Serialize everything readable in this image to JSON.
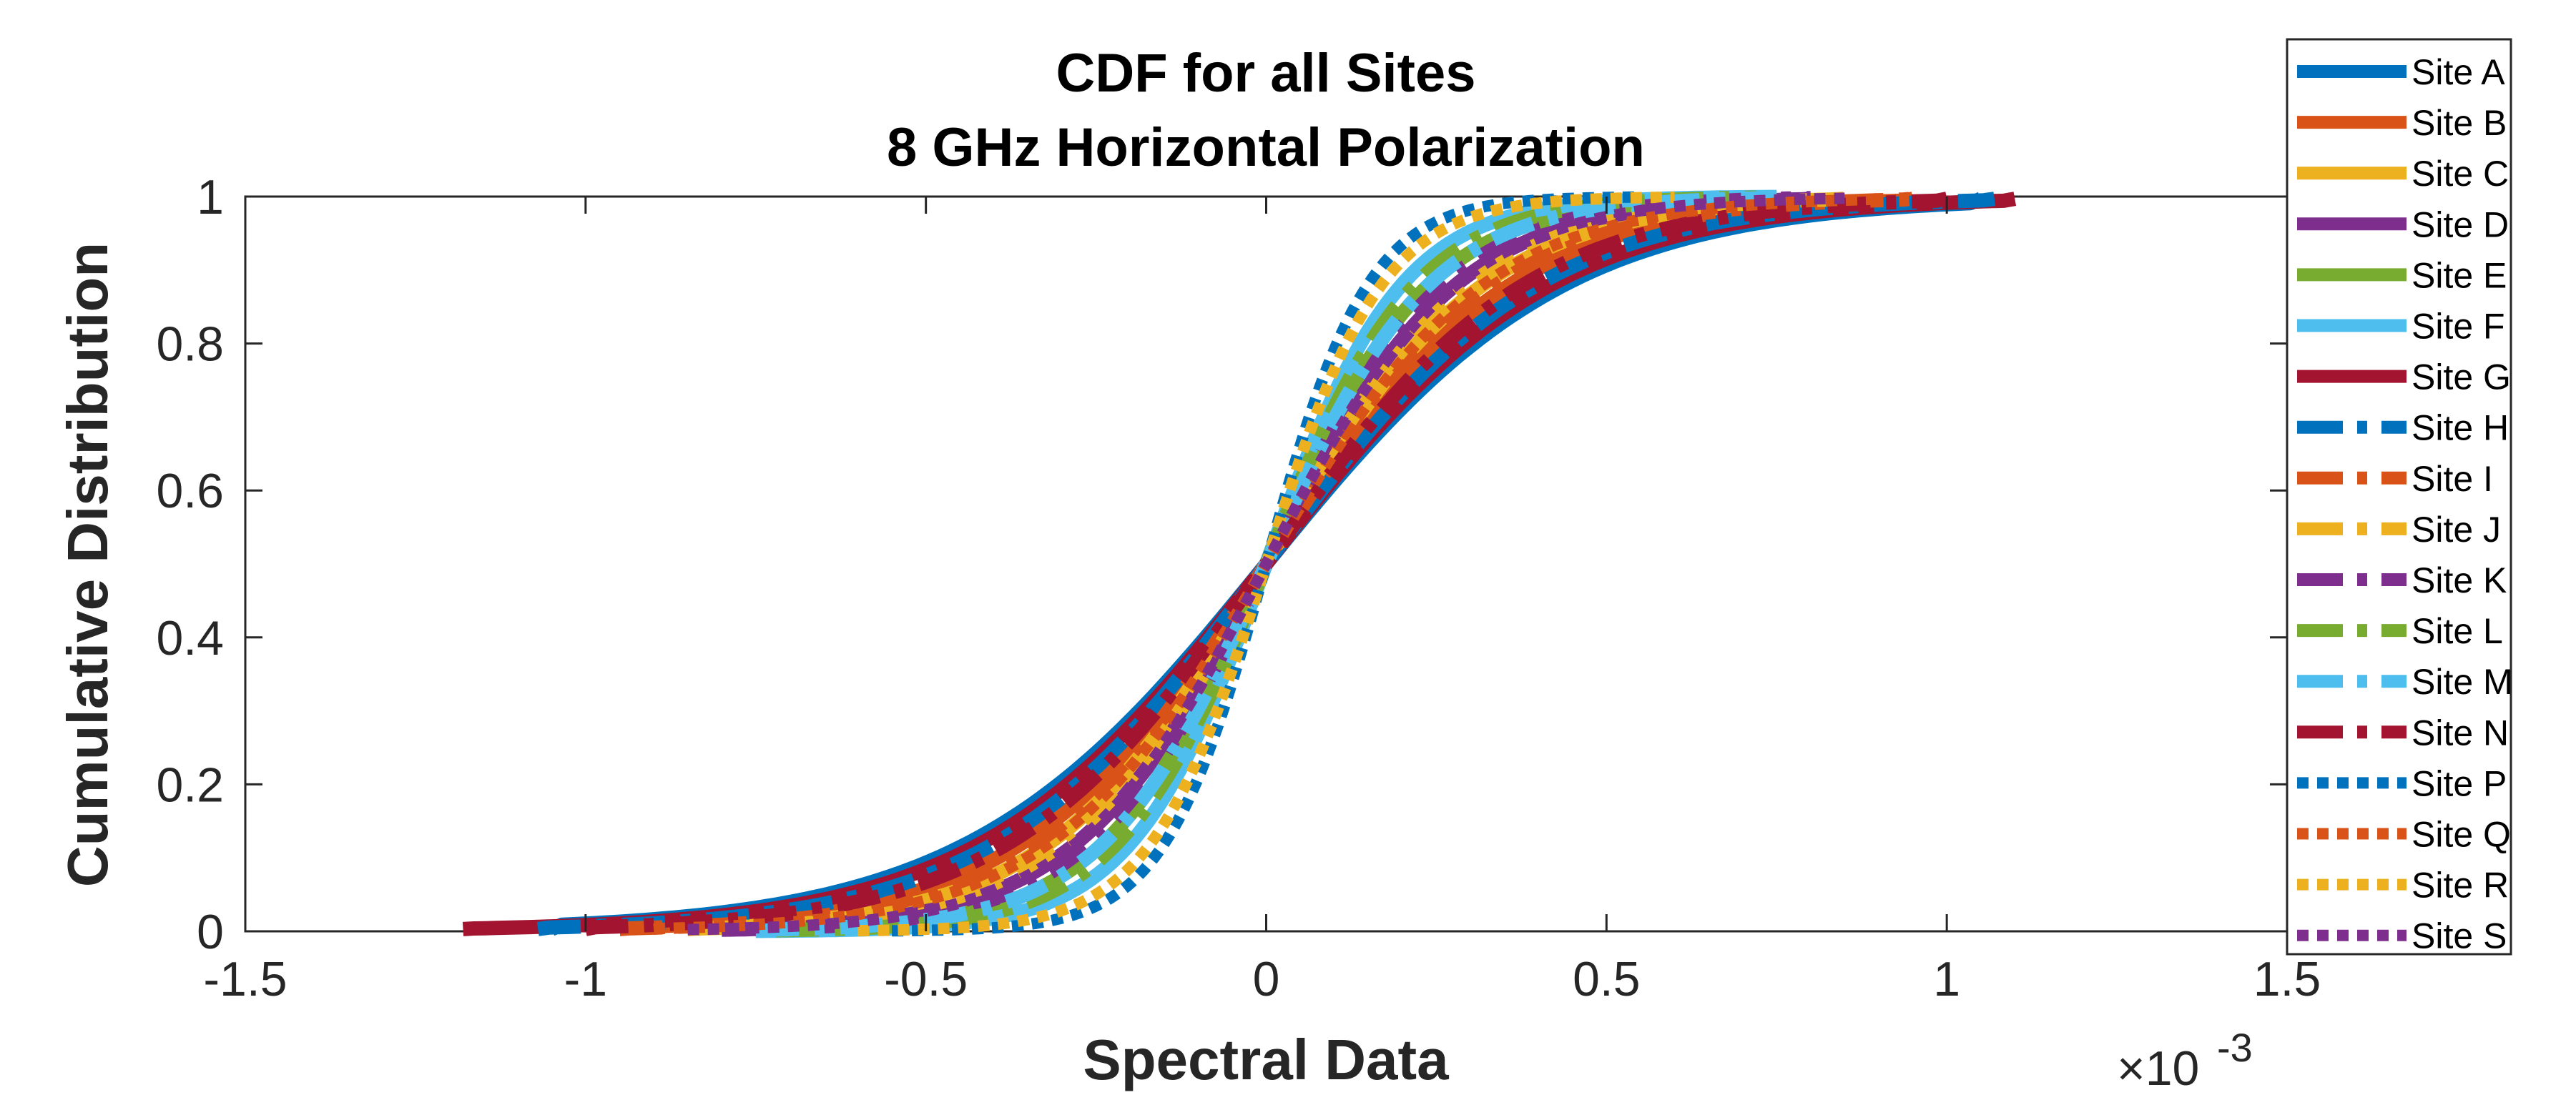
{
  "chart_data": {
    "type": "line",
    "title": [
      "CDF for all Sites",
      "8 GHz Horizontal Polarization"
    ],
    "xlabel": "Spectral Data",
    "ylabel": "Cumulative Distribution",
    "x_exponent_label": "×10",
    "x_exponent_power": "-3",
    "xlim": [
      -1.5,
      1.5
    ],
    "ylim": [
      0,
      1
    ],
    "xticks": [
      -1.5,
      -1,
      -0.5,
      0,
      0.5,
      1,
      1.5
    ],
    "xtick_labels": [
      "-1.5",
      "-1",
      "-0.5",
      "0",
      "0.5",
      "1",
      "1.5"
    ],
    "yticks": [
      0,
      0.2,
      0.4,
      0.6,
      0.8,
      1
    ],
    "ytick_labels": [
      "0",
      "0.2",
      "0.4",
      "0.6",
      "0.8",
      "1"
    ],
    "grid": false,
    "legend_position": "right-outside",
    "series": [
      {
        "name": "Site A",
        "color": "#0072BD",
        "style": "solid",
        "scale": 0.22,
        "xmin": -1.05,
        "xmax": 1.05
      },
      {
        "name": "Site B",
        "color": "#D95319",
        "style": "solid",
        "scale": 0.18,
        "xmin": -0.95,
        "xmax": 0.95
      },
      {
        "name": "Site C",
        "color": "#EDB120",
        "style": "solid",
        "scale": 0.16,
        "xmin": -0.85,
        "xmax": 0.85
      },
      {
        "name": "Site D",
        "color": "#7E2F8E",
        "style": "solid",
        "scale": 0.14,
        "xmin": -0.8,
        "xmax": 0.8
      },
      {
        "name": "Site E",
        "color": "#77AC30",
        "style": "solid",
        "scale": 0.12,
        "xmin": -0.7,
        "xmax": 0.7
      },
      {
        "name": "Site F",
        "color": "#4DBEEE",
        "style": "solid",
        "scale": 0.1,
        "xmin": -0.75,
        "xmax": 0.75
      },
      {
        "name": "Site G",
        "color": "#A2142F",
        "style": "solid",
        "scale": 0.21,
        "xmin": -1.18,
        "xmax": 1.1
      },
      {
        "name": "Site H",
        "color": "#0072BD",
        "style": "dashdot",
        "scale": 0.2,
        "xmin": -1.07,
        "xmax": 1.07
      },
      {
        "name": "Site I",
        "color": "#D95319",
        "style": "dashdot",
        "scale": 0.17,
        "xmin": -0.95,
        "xmax": 0.95
      },
      {
        "name": "Site J",
        "color": "#EDB120",
        "style": "dashdot",
        "scale": 0.15,
        "xmin": -0.85,
        "xmax": 0.85
      },
      {
        "name": "Site K",
        "color": "#7E2F8E",
        "style": "dashdot",
        "scale": 0.13,
        "xmin": -0.8,
        "xmax": 0.8
      },
      {
        "name": "Site L",
        "color": "#77AC30",
        "style": "dashdot",
        "scale": 0.11,
        "xmin": -0.72,
        "xmax": 0.72
      },
      {
        "name": "Site M",
        "color": "#4DBEEE",
        "style": "dashdot",
        "scale": 0.12,
        "xmin": -0.75,
        "xmax": 0.75
      },
      {
        "name": "Site N",
        "color": "#A2142F",
        "style": "dashdot",
        "scale": 0.19,
        "xmin": -1.0,
        "xmax": 1.0
      },
      {
        "name": "Site P",
        "color": "#0072BD",
        "style": "dotted",
        "scale": 0.075,
        "xmin": -0.55,
        "xmax": 0.55
      },
      {
        "name": "Site Q",
        "color": "#D95319",
        "style": "dotted",
        "scale": 0.16,
        "xmin": -0.9,
        "xmax": 0.9
      },
      {
        "name": "Site R",
        "color": "#EDB120",
        "style": "dotted",
        "scale": 0.085,
        "xmin": -0.6,
        "xmax": 0.6
      },
      {
        "name": "Site S",
        "color": "#7E2F8E",
        "style": "dotted",
        "scale": 0.14,
        "xmin": -0.85,
        "xmax": 0.85
      }
    ]
  }
}
